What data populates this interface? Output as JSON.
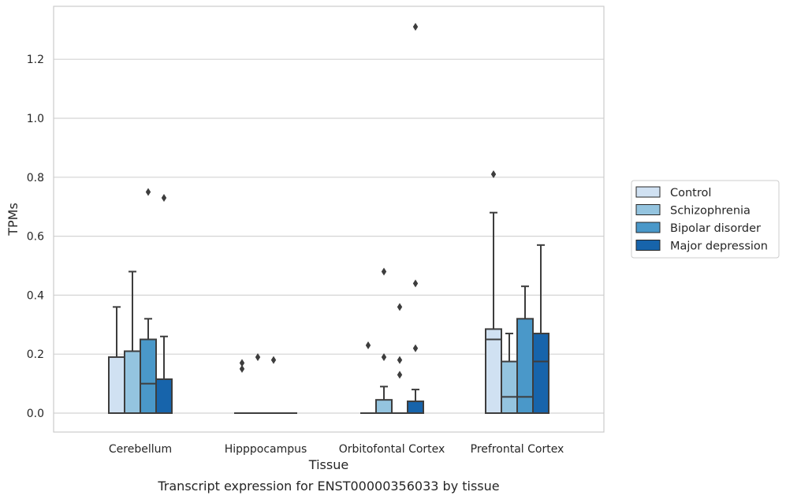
{
  "chart_data": {
    "type": "box",
    "title": "Transcript expression for ENST00000356033 by tissue",
    "xlabel": "Tissue",
    "ylabel": "TPMs",
    "ylim": [
      -0.065,
      1.38
    ],
    "yticks": [
      0.0,
      0.2,
      0.4,
      0.6,
      0.8,
      1.0,
      1.2
    ],
    "ytick_labels": [
      "0.0",
      "0.2",
      "0.4",
      "0.6",
      "0.8",
      "1.0",
      "1.2"
    ],
    "grid": "horizontal",
    "legend_position": "right, outside plot",
    "categories": [
      "Cerebellum",
      "Hipppocampus",
      "Orbitofontal Cortex",
      "Prefrontal Cortex"
    ],
    "series": [
      {
        "name": "Control",
        "color": "#d0e1f2",
        "boxes": [
          {
            "whisker_low": 0.0,
            "q1": 0.0,
            "median": 0.0,
            "q3": 0.19,
            "whisker_high": 0.36,
            "outliers": []
          },
          {
            "whisker_low": 0.0,
            "q1": 0.0,
            "median": 0.0,
            "q3": 0.0,
            "whisker_high": 0.0,
            "outliers": [
              0.15,
              0.17
            ]
          },
          {
            "whisker_low": 0.0,
            "q1": 0.0,
            "median": 0.0,
            "q3": 0.0,
            "whisker_high": 0.0,
            "outliers": [
              0.23
            ]
          },
          {
            "whisker_low": 0.0,
            "q1": 0.0,
            "median": 0.25,
            "q3": 0.285,
            "whisker_high": 0.68,
            "outliers": [
              0.81
            ]
          }
        ]
      },
      {
        "name": "Schizophrenia",
        "color": "#94c4df",
        "boxes": [
          {
            "whisker_low": 0.0,
            "q1": 0.0,
            "median": 0.0,
            "q3": 0.21,
            "whisker_high": 0.48,
            "outliers": []
          },
          {
            "whisker_low": 0.0,
            "q1": 0.0,
            "median": 0.0,
            "q3": 0.0,
            "whisker_high": 0.0,
            "outliers": [
              0.19
            ]
          },
          {
            "whisker_low": 0.0,
            "q1": 0.0,
            "median": 0.0,
            "q3": 0.045,
            "whisker_high": 0.09,
            "outliers": [
              0.19,
              0.48
            ]
          },
          {
            "whisker_low": 0.0,
            "q1": 0.0,
            "median": 0.055,
            "q3": 0.175,
            "whisker_high": 0.27,
            "outliers": []
          }
        ]
      },
      {
        "name": "Bipolar disorder",
        "color": "#4a98c9",
        "boxes": [
          {
            "whisker_low": 0.0,
            "q1": 0.0,
            "median": 0.1,
            "q3": 0.25,
            "whisker_high": 0.32,
            "outliers": [
              0.75
            ]
          },
          {
            "whisker_low": 0.0,
            "q1": 0.0,
            "median": 0.0,
            "q3": 0.0,
            "whisker_high": 0.0,
            "outliers": [
              0.18
            ]
          },
          {
            "whisker_low": 0.0,
            "q1": 0.0,
            "median": 0.0,
            "q3": 0.0,
            "whisker_high": 0.0,
            "outliers": [
              0.13,
              0.18,
              0.36
            ]
          },
          {
            "whisker_low": 0.0,
            "q1": 0.0,
            "median": 0.055,
            "q3": 0.32,
            "whisker_high": 0.43,
            "outliers": []
          }
        ]
      },
      {
        "name": "Major depression",
        "color": "#1764ab",
        "boxes": [
          {
            "whisker_low": 0.0,
            "q1": 0.0,
            "median": 0.0,
            "q3": 0.115,
            "whisker_high": 0.26,
            "outliers": [
              0.73
            ]
          },
          {
            "whisker_low": 0.0,
            "q1": 0.0,
            "median": 0.0,
            "q3": 0.0,
            "whisker_high": 0.0,
            "outliers": []
          },
          {
            "whisker_low": 0.0,
            "q1": 0.0,
            "median": 0.0,
            "q3": 0.04,
            "whisker_high": 0.08,
            "outliers": [
              0.22,
              0.44,
              1.31
            ]
          },
          {
            "whisker_low": 0.0,
            "q1": 0.0,
            "median": 0.175,
            "q3": 0.27,
            "whisker_high": 0.57,
            "outliers": []
          }
        ]
      }
    ]
  }
}
